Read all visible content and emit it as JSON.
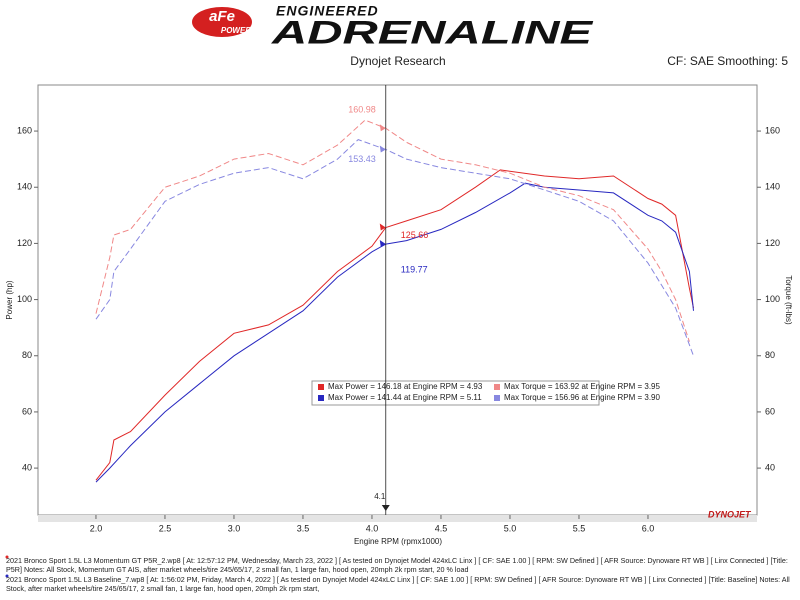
{
  "header": {
    "logo": "aFe",
    "logo_sub": "POWER",
    "tagline": "ENGINEERED",
    "title": "ADRENALINE",
    "subtitle": "Dynojet Research",
    "settings": "CF: SAE Smoothing: 5"
  },
  "chart_data": {
    "type": "line",
    "x_label": "Engine RPM (rpmx1000)",
    "y_label": "Power (hp)",
    "y2_label": "Torque (ft-lbs)",
    "xlim": [
      1.58,
      6.79
    ],
    "ylim": [
      23.3,
      176.4
    ],
    "y2lim": [
      23.3,
      176.4
    ],
    "xticks": [
      {
        "value": 2,
        "label": "2.0"
      },
      {
        "value": 2.5,
        "label": "2.5"
      },
      {
        "value": 3,
        "label": "3.0"
      },
      {
        "value": 3.5,
        "label": "3.5"
      },
      {
        "value": 4,
        "label": "4.0"
      },
      {
        "value": 4.5,
        "label": "4.5"
      },
      {
        "value": 5,
        "label": "5.0"
      },
      {
        "value": 5.5,
        "label": "5.5"
      },
      {
        "value": 6,
        "label": "6.0"
      }
    ],
    "yticks": [
      40,
      60,
      80,
      100,
      120,
      140,
      160
    ],
    "y2ticks": [
      40,
      60,
      80,
      100,
      120,
      140,
      160
    ],
    "grid": false,
    "series": [
      {
        "name": "Max Power = 146.18 at Engine RPM = 4.93",
        "color": "#e02828",
        "dashed": false,
        "x": [
          2.0,
          2.1,
          2.13,
          2.25,
          2.5,
          2.75,
          3.0,
          3.25,
          3.5,
          3.75,
          4.0,
          4.1,
          4.25,
          4.5,
          4.75,
          4.93,
          5.25,
          5.5,
          5.75,
          6.0,
          6.1,
          6.2,
          6.3,
          6.33
        ],
        "values": [
          35.7,
          42,
          50,
          53,
          66,
          78,
          88,
          91,
          98,
          110,
          119,
          125.66,
          128,
          132,
          140,
          146.18,
          144,
          143,
          144,
          136,
          134,
          130,
          104,
          97
        ]
      },
      {
        "name": "Max Power = 141.44 at Engine RPM = 5.11",
        "color": "#2828c0",
        "dashed": false,
        "x": [
          2.0,
          2.1,
          2.25,
          2.5,
          2.75,
          3.0,
          3.25,
          3.5,
          3.75,
          4.0,
          4.1,
          4.25,
          4.5,
          4.75,
          5.0,
          5.11,
          5.25,
          5.5,
          5.75,
          6.0,
          6.1,
          6.2,
          6.3,
          6.33
        ],
        "values": [
          35,
          40,
          48,
          60,
          70,
          80,
          88,
          96,
          108,
          117,
          119.77,
          121,
          125,
          131,
          138,
          141.44,
          140,
          139,
          138,
          130,
          128,
          124,
          110,
          96
        ]
      },
      {
        "name": "Max Torque = 163.92 at Engine RPM = 3.95",
        "color": "#f08888",
        "dashed": true,
        "axis": "y2",
        "x": [
          2.0,
          2.1,
          2.13,
          2.25,
          2.5,
          2.75,
          3.0,
          3.25,
          3.5,
          3.75,
          3.95,
          4.1,
          4.25,
          4.5,
          4.75,
          5.0,
          5.25,
          5.5,
          5.75,
          6.0,
          6.1,
          6.2,
          6.3
        ],
        "values": [
          95,
          115,
          123,
          125,
          140,
          144,
          150,
          152,
          148,
          155,
          163.92,
          160.98,
          156,
          150,
          148,
          145,
          140,
          137,
          132,
          118,
          110,
          100,
          85
        ]
      },
      {
        "name": "Max Torque = 156.96 at Engine RPM = 3.90",
        "color": "#8888e0",
        "dashed": true,
        "axis": "y2",
        "x": [
          2.0,
          2.1,
          2.13,
          2.25,
          2.5,
          2.75,
          3.0,
          3.25,
          3.5,
          3.75,
          3.9,
          4.1,
          4.25,
          4.5,
          4.75,
          5.0,
          5.25,
          5.5,
          5.75,
          6.0,
          6.1,
          6.2,
          6.33
        ],
        "values": [
          93,
          100,
          110,
          118,
          135,
          141,
          145,
          147,
          143,
          150,
          156.96,
          153.43,
          150,
          147,
          145,
          143,
          139,
          135,
          128,
          113,
          105,
          97,
          80
        ]
      }
    ],
    "cursor": {
      "x": 4.1,
      "x_label": "4.1",
      "values": [
        125.66,
        119.77,
        160.98,
        153.43
      ]
    }
  },
  "footer": {
    "brand": "DYNOJET",
    "notes": [
      "2021 Bronco Sport 1.5L L3 Momentum GT P5R_2.wp8 [ At: 12:57:12 PM, Wednesday, March 23, 2022 ] [ As tested on Dynojet Model 424xLC Linx ] [ CF: SAE 1.00 ] [ RPM: SW Defined ] [ AFR Source: Dynoware RT WB ] [ Linx Connected ] [Title: P5R]  Notes: All Stock, Momentum GT AIS, after market wheels/tire 245/65/17, 2 small fan, 1 large fan, hood open,  20mph 2k rpm start, 20 % load",
      "2021 Bronco Sport 1.5L L3 Baseline_7.wp8 [ At: 1:56:02 PM, Friday, March 4, 2022 ] [ As tested on Dynojet Model 424xLC Linx ] [ CF: SAE 1.00 ] [ RPM: SW Defined ] [ AFR Source: Dynoware RT WB ] [ Linx Connected ] [Title: Baseline]  Notes: All Stock, after market wheels/tire 245/65/17, 2 small fan, 1 large fan, hood open,  20mph 2k rpm start,"
    ]
  }
}
